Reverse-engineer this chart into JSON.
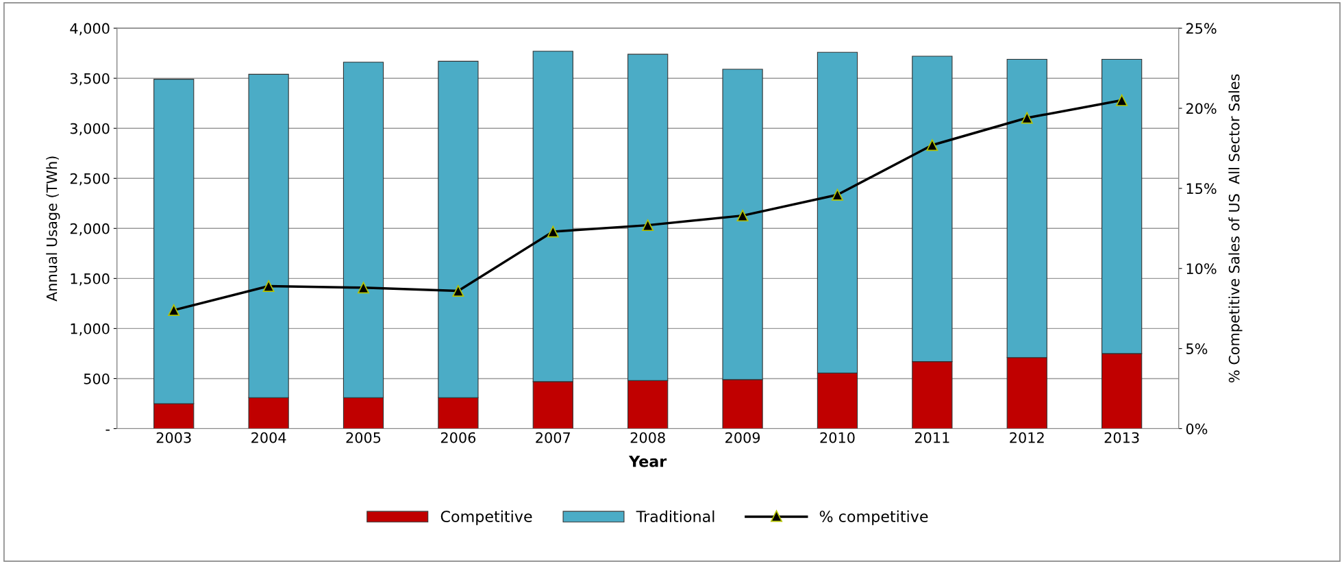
{
  "chart_data": {
    "type": "bar",
    "stacked": true,
    "xlabel": "Year",
    "ylabel": "Annual Usage (TWh)",
    "y2label": "% Competitive Sales of US  All Sector Sales",
    "categories": [
      "2003",
      "2004",
      "2005",
      "2006",
      "2007",
      "2008",
      "2009",
      "2010",
      "2011",
      "2012",
      "2013"
    ],
    "series": [
      {
        "name": "Competitive",
        "color": "#c00000",
        "values": [
          250,
          310,
          310,
          310,
          470,
          480,
          490,
          555,
          670,
          710,
          750
        ]
      },
      {
        "name": "Traditional",
        "color": "#4bacc6",
        "values": [
          3240,
          3230,
          3350,
          3360,
          3300,
          3260,
          3100,
          3205,
          3050,
          2980,
          2940
        ]
      },
      {
        "name": "% competitive",
        "type": "line",
        "axis": "y2",
        "color": "#000000",
        "marker": "triangle",
        "values": [
          7.4,
          8.9,
          8.8,
          8.6,
          12.3,
          12.7,
          13.3,
          14.6,
          17.7,
          19.4,
          20.5
        ]
      }
    ],
    "ylim": [
      0,
      4000
    ],
    "yticks": [
      {
        "value": 0,
        "label": "-"
      },
      {
        "value": 500,
        "label": "500"
      },
      {
        "value": 1000,
        "label": "1,000"
      },
      {
        "value": 1500,
        "label": "1,500"
      },
      {
        "value": 2000,
        "label": "2,000"
      },
      {
        "value": 2500,
        "label": "2,500"
      },
      {
        "value": 3000,
        "label": "3,000"
      },
      {
        "value": 3500,
        "label": "3,500"
      },
      {
        "value": 4000,
        "label": "4,000"
      }
    ],
    "y2lim": [
      0,
      25
    ],
    "y2ticks": [
      {
        "value": 0,
        "label": "0%"
      },
      {
        "value": 5,
        "label": "5%"
      },
      {
        "value": 10,
        "label": "10%"
      },
      {
        "value": 15,
        "label": "15%"
      },
      {
        "value": 20,
        "label": "20%"
      },
      {
        "value": 25,
        "label": "25%"
      }
    ],
    "grid": "y",
    "legend": "bottom"
  }
}
